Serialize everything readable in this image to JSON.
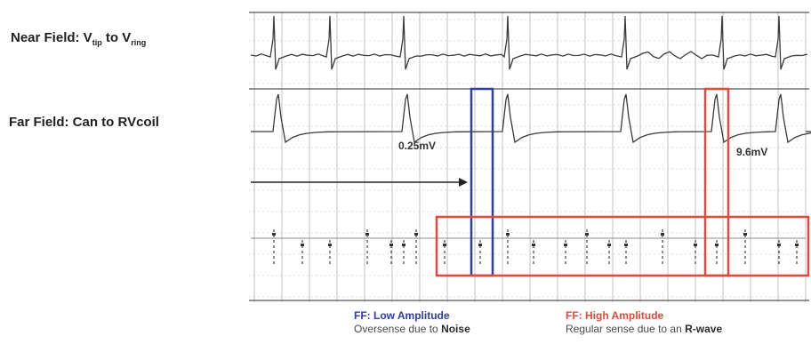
{
  "near_field": {
    "prefix": "Near Field: V",
    "sub1": "tip",
    "mid": " to V",
    "sub2": "ring"
  },
  "far_field": {
    "label": "Far Field: Can to RVcoil"
  },
  "measurements": {
    "low": "0.25mV",
    "high": "9.6mV"
  },
  "captions": {
    "low": {
      "title": "FF: Low Amplitude",
      "text": "Oversense due to ",
      "bold": "Noise"
    },
    "high": {
      "title": "FF: High Amplitude",
      "text": "Regular sense due to an ",
      "bold": "R-wave"
    }
  },
  "colors": {
    "low": "#2e3ea8",
    "high": "#e04a3c",
    "trace": "#3a3a3a",
    "grid": "#b4b4b4"
  }
}
